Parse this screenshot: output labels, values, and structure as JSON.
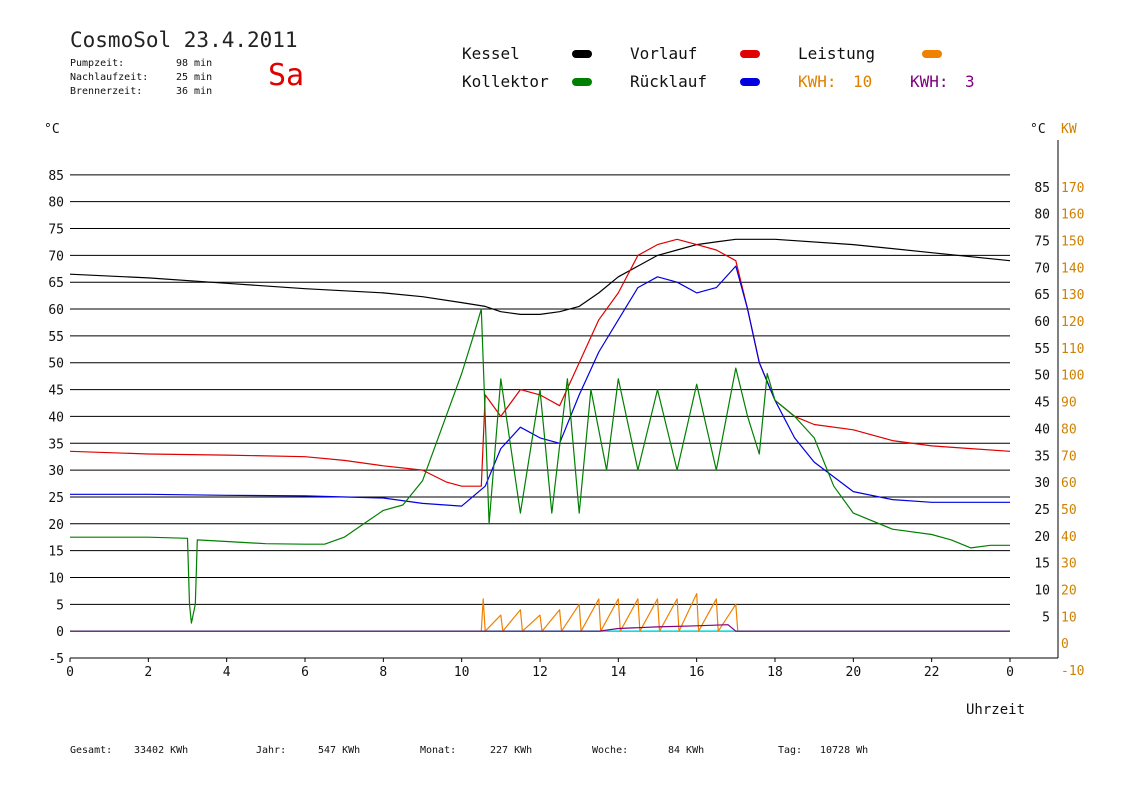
{
  "header": {
    "title": "CosmoSol 23.4.2011",
    "weekday": "Sa",
    "info": [
      {
        "label": "Pumpzeit:",
        "value": "98 min"
      },
      {
        "label": "Nachlaufzeit:",
        "value": "25 min"
      },
      {
        "label": "Brennerzeit:",
        "value": "36 min"
      }
    ]
  },
  "legend": [
    {
      "name": "Kessel",
      "color": "#000000"
    },
    {
      "name": "Vorlauf",
      "color": "#e00000"
    },
    {
      "name": "Leistung",
      "color": "#f08000"
    },
    {
      "name": "Kollektor",
      "color": "#008000"
    },
    {
      "name": "Rücklauf",
      "color": "#0000e0"
    }
  ],
  "kwh": [
    {
      "label": "KWH:",
      "value": "10",
      "color": "#e08000"
    },
    {
      "label": "KWH:",
      "value": "3",
      "color": "#800080"
    }
  ],
  "footer": [
    {
      "label": "Gesamt:",
      "value": "33402 KWh"
    },
    {
      "label": "Jahr:",
      "value": "547 KWh"
    },
    {
      "label": "Monat:",
      "value": "227 KWh"
    },
    {
      "label": "Woche:",
      "value": "84 KWh"
    },
    {
      "label": "Tag:",
      "value": "10728 Wh"
    }
  ],
  "chart_data": {
    "type": "line",
    "xlabel": "Uhrzeit",
    "xlim": [
      0,
      24
    ],
    "x_ticks": [
      "0",
      "2",
      "4",
      "6",
      "8",
      "10",
      "12",
      "14",
      "16",
      "18",
      "20",
      "22",
      "0"
    ],
    "ylim_left": [
      -5,
      90
    ],
    "ylabel_left": "°C",
    "ylabel_right_temp": "°C",
    "ylabel_right_power": "KW",
    "y_ticks_left": [
      "-5",
      "0",
      "5",
      "10",
      "15",
      "20",
      "25",
      "30",
      "35",
      "40",
      "45",
      "50",
      "55",
      "60",
      "65",
      "70",
      "75",
      "80",
      "85"
    ],
    "y_ticks_right_temp": [
      "5",
      "10",
      "15",
      "20",
      "25",
      "30",
      "35",
      "40",
      "45",
      "50",
      "55",
      "60",
      "65",
      "70",
      "75",
      "80",
      "85"
    ],
    "y_ticks_right_power": [
      "-10",
      "0",
      "10",
      "20",
      "30",
      "40",
      "50",
      "60",
      "70",
      "80",
      "90",
      "100",
      "110",
      "120",
      "130",
      "140",
      "150",
      "160",
      "170"
    ],
    "grid": true,
    "series": [
      {
        "name": "Kessel",
        "color": "#000000",
        "x": [
          0,
          2,
          4,
          6,
          8,
          9,
          10,
          10.6,
          11,
          11.5,
          12,
          12.5,
          13,
          13.5,
          14,
          14.5,
          15,
          15.5,
          16,
          16.5,
          17,
          18,
          20,
          22,
          24
        ],
        "y": [
          66.5,
          65.8,
          64.8,
          63.8,
          63,
          62.3,
          61.2,
          60.5,
          59.5,
          59,
          59,
          59.5,
          60.5,
          63,
          66,
          68,
          70,
          71,
          72,
          72.5,
          73,
          73,
          72,
          70.5,
          69
        ]
      },
      {
        "name": "Vorlauf",
        "color": "#e00000",
        "x": [
          0,
          2,
          4,
          6,
          7,
          8,
          9,
          9.6,
          10,
          10.5,
          10.6,
          11,
          11.5,
          12,
          12.5,
          13,
          13.5,
          14,
          14.5,
          15,
          15.5,
          16,
          16.5,
          17,
          17.3,
          17.6,
          18,
          18.5,
          19,
          20,
          21,
          22,
          23,
          24
        ],
        "y": [
          33.5,
          33,
          32.8,
          32.5,
          31.8,
          30.8,
          30,
          27.8,
          27,
          27,
          44,
          40,
          45,
          44,
          42,
          50,
          58,
          63,
          70,
          72,
          73,
          72,
          71,
          69,
          60,
          50,
          43,
          40,
          38.5,
          37.5,
          35.5,
          34.5,
          34,
          33.5
        ]
      },
      {
        "name": "Rücklauf",
        "color": "#0000e0",
        "x": [
          0,
          2,
          4,
          6,
          8,
          9,
          10,
          10.6,
          11,
          11.5,
          12,
          12.5,
          13,
          13.5,
          14,
          14.5,
          15,
          15.5,
          16,
          16.5,
          17,
          17.3,
          17.6,
          18,
          18.5,
          19,
          20,
          21,
          22,
          23,
          24
        ],
        "y": [
          25.5,
          25.5,
          25.3,
          25.2,
          24.8,
          23.8,
          23.3,
          27,
          34,
          38,
          36,
          35,
          44,
          52,
          58,
          64,
          66,
          65,
          63,
          64,
          68,
          60,
          50,
          43,
          36,
          31.5,
          26,
          24.5,
          24,
          24,
          24
        ]
      },
      {
        "name": "Kollektor",
        "color": "#008000",
        "x": [
          0,
          1,
          2,
          3,
          3.05,
          3.1,
          3.2,
          3.25,
          4,
          5,
          6,
          6.5,
          7,
          7.5,
          8,
          8.5,
          9,
          9.5,
          10,
          10.3,
          10.5,
          10.7,
          11,
          11.5,
          12,
          12.3,
          12.7,
          13,
          13.3,
          13.7,
          14,
          14.5,
          15,
          15.5,
          16,
          16.5,
          17,
          17.3,
          17.6,
          17.8,
          18,
          18.5,
          19,
          19.5,
          20,
          21,
          22,
          22.5,
          23,
          23.5,
          24
        ],
        "y": [
          17.5,
          17.5,
          17.5,
          17.3,
          5,
          1.5,
          5,
          17,
          16.7,
          16.3,
          16.2,
          16.2,
          17.5,
          20,
          22.5,
          23.5,
          28,
          38,
          48,
          55,
          60,
          20,
          47,
          22,
          45,
          22,
          47,
          22,
          45,
          30,
          47,
          30,
          45,
          30,
          46,
          30,
          49,
          40,
          33,
          48,
          43,
          40,
          36,
          27,
          22,
          19,
          18,
          17,
          15.5,
          16,
          16
        ]
      },
      {
        "name": "Leistung",
        "color": "#f08000",
        "x": [
          0,
          10.5,
          10.55,
          10.6,
          11,
          11.05,
          11.5,
          11.55,
          12,
          12.05,
          12.5,
          12.55,
          13,
          13.05,
          13.5,
          13.55,
          14,
          14.05,
          14.5,
          14.55,
          15,
          15.05,
          15.5,
          15.55,
          16,
          16.05,
          16.5,
          16.55,
          17,
          17.05,
          24
        ],
        "y": [
          0,
          0,
          6,
          0,
          3,
          0,
          4,
          0,
          3,
          0,
          4,
          0,
          5,
          0,
          6,
          0,
          6,
          0,
          6,
          0,
          6,
          0,
          6,
          0,
          7,
          0,
          6,
          0,
          5,
          0,
          0
        ]
      },
      {
        "name": "KWH-burner",
        "color": "#800080",
        "x": [
          0,
          13.5,
          14,
          15,
          16,
          16.8,
          17,
          24
        ],
        "y": [
          0,
          0,
          0.5,
          0.8,
          1,
          1.2,
          0,
          0
        ]
      }
    ],
    "pump_line": {
      "color": "#00e0e0",
      "y": 0
    }
  }
}
